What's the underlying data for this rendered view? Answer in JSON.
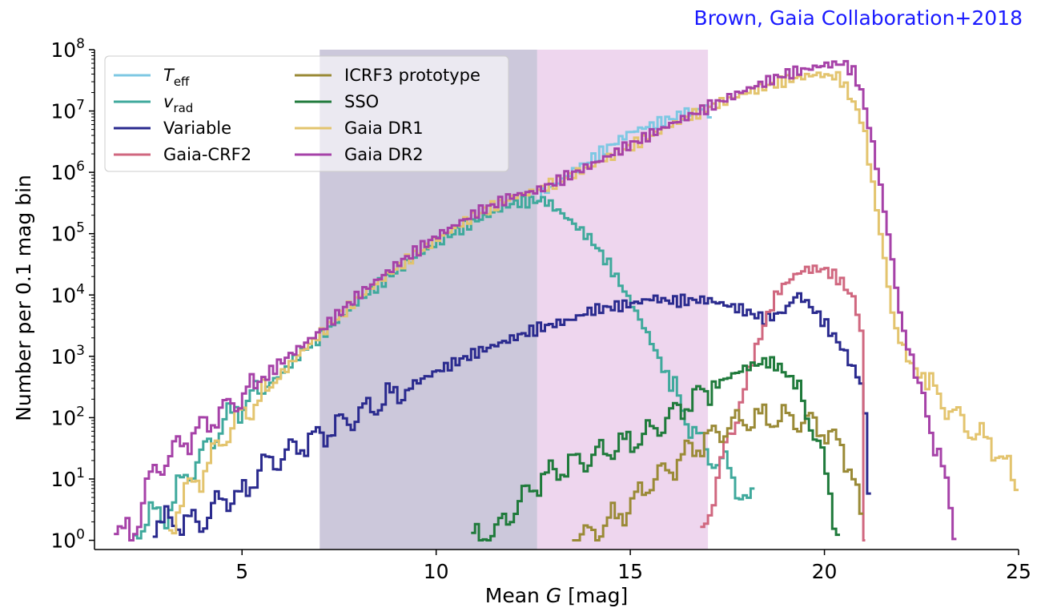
{
  "credit": "Brown, Gaia Collaboration+2018",
  "chart_data": {
    "type": "line",
    "xlabel_pre": "Mean ",
    "xlabel_var": "G",
    "xlabel_post": " [mag]",
    "ylabel": "Number per 0.1 mag bin",
    "xlim": [
      1.2,
      25
    ],
    "ylim_log10": [
      -0.15,
      8
    ],
    "y_scale": "log",
    "x_ticks": [
      5,
      10,
      15,
      20,
      25
    ],
    "y_tick_exponents": [
      0,
      1,
      2,
      3,
      4,
      5,
      6,
      7,
      8
    ],
    "legend_position": "top-left",
    "bands": [
      {
        "x0": 7.0,
        "x1": 12.6,
        "color": "#8d85b0",
        "opacity": 0.45
      },
      {
        "x0": 12.6,
        "x1": 17.0,
        "color": "#d9a3d9",
        "opacity": 0.45
      }
    ],
    "series": [
      {
        "name": "T",
        "name_sub": "eff",
        "italic": true,
        "color": "#7ec8e3",
        "points": [
          [
            12.6,
            5.6
          ],
          [
            15,
            6.65
          ],
          [
            17.0,
            7.08
          ],
          [
            17.05,
            6.9
          ],
          [
            17.1,
            0
          ]
        ]
      },
      {
        "name": "v",
        "name_sub": "rad",
        "italic": true,
        "color": "#3fa99c",
        "points": [
          [
            2.2,
            0
          ],
          [
            2.6,
            0.45
          ],
          [
            3.0,
            0.35
          ],
          [
            3.5,
            1.0
          ],
          [
            4.0,
            1.4
          ],
          [
            4.5,
            1.9
          ],
          [
            5.0,
            2.2
          ],
          [
            5.5,
            2.45
          ],
          [
            6.0,
            2.7
          ],
          [
            6.5,
            3.05
          ],
          [
            7.0,
            3.3
          ],
          [
            8.0,
            3.9
          ],
          [
            9.0,
            4.4
          ],
          [
            10.0,
            4.85
          ],
          [
            11.0,
            5.2
          ],
          [
            12.0,
            5.5
          ],
          [
            12.8,
            5.55
          ],
          [
            13.3,
            5.3
          ],
          [
            14.0,
            4.9
          ],
          [
            14.5,
            4.45
          ],
          [
            15.0,
            3.9
          ],
          [
            15.5,
            3.3
          ],
          [
            16.0,
            2.6
          ],
          [
            16.5,
            1.95
          ],
          [
            16.8,
            1.6
          ],
          [
            17.0,
            1.4
          ],
          [
            17.5,
            1.2
          ],
          [
            17.8,
            0.85
          ],
          [
            18.0,
            0.6
          ],
          [
            18.2,
            0.6
          ]
        ]
      },
      {
        "name": "Variable",
        "color": "#2a2a8e",
        "points": [
          [
            2.7,
            0.3
          ],
          [
            3.2,
            0.3
          ],
          [
            4.0,
            0.3
          ],
          [
            4.5,
            0.7
          ],
          [
            5.0,
            0.7
          ],
          [
            5.5,
            1.2
          ],
          [
            6.0,
            1.35
          ],
          [
            6.5,
            1.55
          ],
          [
            7.0,
            1.7
          ],
          [
            8.0,
            2.05
          ],
          [
            9.0,
            2.4
          ],
          [
            10.0,
            2.75
          ],
          [
            11.0,
            3.05
          ],
          [
            12.0,
            3.3
          ],
          [
            12.6,
            3.45
          ],
          [
            13.5,
            3.6
          ],
          [
            14.0,
            3.75
          ],
          [
            15.0,
            3.85
          ],
          [
            15.6,
            3.95
          ],
          [
            16.0,
            3.9
          ],
          [
            17.0,
            3.92
          ],
          [
            17.8,
            3.78
          ],
          [
            18.5,
            3.6
          ],
          [
            19.0,
            3.75
          ],
          [
            19.3,
            4.02
          ],
          [
            19.6,
            3.85
          ],
          [
            20.0,
            3.55
          ],
          [
            20.5,
            3.1
          ],
          [
            21.0,
            2.5
          ],
          [
            21.2,
            0.3
          ]
        ]
      },
      {
        "name": "Gaia-CRF2",
        "color": "#d0677f",
        "points": [
          [
            16.8,
            0
          ],
          [
            17.0,
            0.4
          ],
          [
            17.2,
            0.9
          ],
          [
            17.5,
            1.55
          ],
          [
            17.8,
            2.2
          ],
          [
            18.1,
            2.85
          ],
          [
            18.5,
            3.6
          ],
          [
            18.8,
            4.05
          ],
          [
            19.2,
            4.3
          ],
          [
            19.5,
            4.42
          ],
          [
            20.0,
            4.42
          ],
          [
            20.4,
            4.25
          ],
          [
            20.8,
            3.9
          ],
          [
            21.0,
            3.2
          ],
          [
            21.05,
            0
          ]
        ]
      },
      {
        "name": "ICRF3 prototype",
        "color": "#9a8a36",
        "points": [
          [
            13.5,
            0
          ],
          [
            14.0,
            0.1
          ],
          [
            15.0,
            0.55
          ],
          [
            15.5,
            0.95
          ],
          [
            16.0,
            1.15
          ],
          [
            16.5,
            1.45
          ],
          [
            17.0,
            1.65
          ],
          [
            17.5,
            1.85
          ],
          [
            18.0,
            1.97
          ],
          [
            18.5,
            2.0
          ],
          [
            19.0,
            1.98
          ],
          [
            19.5,
            1.95
          ],
          [
            20.0,
            1.8
          ],
          [
            20.5,
            1.45
          ],
          [
            20.8,
            1.0
          ],
          [
            21.0,
            0
          ]
        ]
      },
      {
        "name": "SSO",
        "color": "#1f7a3b",
        "points": [
          [
            10.9,
            0
          ],
          [
            11.5,
            0.1
          ],
          [
            12.0,
            0.5
          ],
          [
            12.6,
            0.95
          ],
          [
            13.0,
            1.1
          ],
          [
            13.5,
            1.25
          ],
          [
            14.0,
            1.35
          ],
          [
            14.5,
            1.5
          ],
          [
            15.0,
            1.6
          ],
          [
            15.5,
            1.75
          ],
          [
            16.0,
            2.0
          ],
          [
            16.5,
            2.25
          ],
          [
            17.0,
            2.45
          ],
          [
            17.5,
            2.65
          ],
          [
            18.0,
            2.82
          ],
          [
            18.5,
            2.92
          ],
          [
            18.8,
            2.85
          ],
          [
            19.2,
            2.6
          ],
          [
            19.6,
            2.05
          ],
          [
            20.0,
            1.2
          ],
          [
            20.4,
            0
          ]
        ]
      },
      {
        "name": "Gaia DR1",
        "color": "#e3c46e",
        "points": [
          [
            3.1,
            0
          ],
          [
            3.4,
            0.65
          ],
          [
            4.0,
            1.1
          ],
          [
            4.5,
            1.65
          ],
          [
            5.0,
            2.05
          ],
          [
            5.5,
            2.3
          ],
          [
            6.0,
            2.7
          ],
          [
            6.5,
            3.05
          ],
          [
            7.0,
            3.35
          ],
          [
            8.0,
            3.95
          ],
          [
            9.0,
            4.45
          ],
          [
            10.0,
            4.9
          ],
          [
            11.0,
            5.3
          ],
          [
            12.0,
            5.6
          ],
          [
            12.6,
            5.7
          ],
          [
            14.0,
            6.1
          ],
          [
            15.0,
            6.42
          ],
          [
            16.0,
            6.75
          ],
          [
            17.0,
            7.05
          ],
          [
            18.0,
            7.3
          ],
          [
            19.0,
            7.5
          ],
          [
            19.8,
            7.6
          ],
          [
            20.4,
            7.55
          ],
          [
            20.7,
            7.2
          ],
          [
            21.0,
            6.8
          ],
          [
            21.2,
            6.0
          ],
          [
            21.5,
            4.8
          ],
          [
            21.8,
            3.5
          ],
          [
            22.2,
            2.9
          ],
          [
            22.6,
            2.6
          ],
          [
            23.0,
            2.3
          ],
          [
            23.5,
            1.95
          ],
          [
            24.0,
            1.7
          ],
          [
            24.5,
            1.45
          ],
          [
            25.0,
            0.8
          ]
        ]
      },
      {
        "name": "Gaia DR2",
        "color": "#a642a8",
        "points": [
          [
            1.7,
            0.3
          ],
          [
            2.2,
            0
          ],
          [
            2.5,
            0.85
          ],
          [
            3.0,
            1.3
          ],
          [
            3.5,
            1.6
          ],
          [
            4.0,
            1.85
          ],
          [
            4.5,
            2.1
          ],
          [
            5.0,
            2.35
          ],
          [
            5.5,
            2.6
          ],
          [
            6.0,
            2.9
          ],
          [
            6.5,
            3.15
          ],
          [
            7.0,
            3.4
          ],
          [
            8.0,
            4.0
          ],
          [
            9.0,
            4.5
          ],
          [
            10.0,
            4.95
          ],
          [
            11.0,
            5.33
          ],
          [
            12.0,
            5.62
          ],
          [
            12.6,
            5.7
          ],
          [
            14.0,
            6.12
          ],
          [
            15.0,
            6.45
          ],
          [
            16.0,
            6.77
          ],
          [
            17.0,
            7.06
          ],
          [
            18.0,
            7.35
          ],
          [
            19.0,
            7.6
          ],
          [
            20.0,
            7.75
          ],
          [
            20.5,
            7.78
          ],
          [
            20.8,
            7.6
          ],
          [
            21.0,
            7.2
          ],
          [
            21.3,
            6.3
          ],
          [
            21.6,
            5.2
          ],
          [
            22.0,
            3.5
          ],
          [
            22.5,
            2.4
          ],
          [
            23.0,
            1.3
          ],
          [
            23.4,
            0
          ]
        ]
      }
    ]
  }
}
